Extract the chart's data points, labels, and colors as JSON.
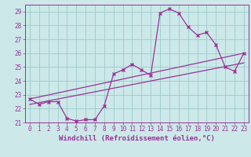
{
  "background_color": "#cce8e8",
  "grid_color": "#99cccc",
  "line_color": "#993399",
  "marker_color": "#993399",
  "xlabel": "Windchill (Refroidissement éolien,°C)",
  "xlim": [
    -0.5,
    23.5
  ],
  "ylim": [
    21.0,
    29.5
  ],
  "yticks": [
    21,
    22,
    23,
    24,
    25,
    26,
    27,
    28,
    29
  ],
  "xticks": [
    0,
    1,
    2,
    3,
    4,
    5,
    6,
    7,
    8,
    9,
    10,
    11,
    12,
    13,
    14,
    15,
    16,
    17,
    18,
    19,
    20,
    21,
    22,
    23
  ],
  "series1_x": [
    0,
    1,
    2,
    3,
    4,
    5,
    6,
    7,
    8,
    9,
    10,
    11,
    12,
    13,
    14,
    15,
    16,
    17,
    18,
    19,
    20,
    21,
    22,
    23
  ],
  "series1_y": [
    22.7,
    22.3,
    22.5,
    22.5,
    21.3,
    21.1,
    21.2,
    21.2,
    22.2,
    24.5,
    24.8,
    25.2,
    24.8,
    24.4,
    28.9,
    29.2,
    28.9,
    27.9,
    27.3,
    27.5,
    26.6,
    25.0,
    24.7,
    26.0
  ],
  "series2_x": [
    0,
    23
  ],
  "series2_y": [
    22.7,
    26.0
  ],
  "series3_x": [
    0,
    23
  ],
  "series3_y": [
    22.3,
    25.3
  ],
  "font_family": "monospace",
  "tick_fontsize": 5.5,
  "xlabel_fontsize": 6.5
}
